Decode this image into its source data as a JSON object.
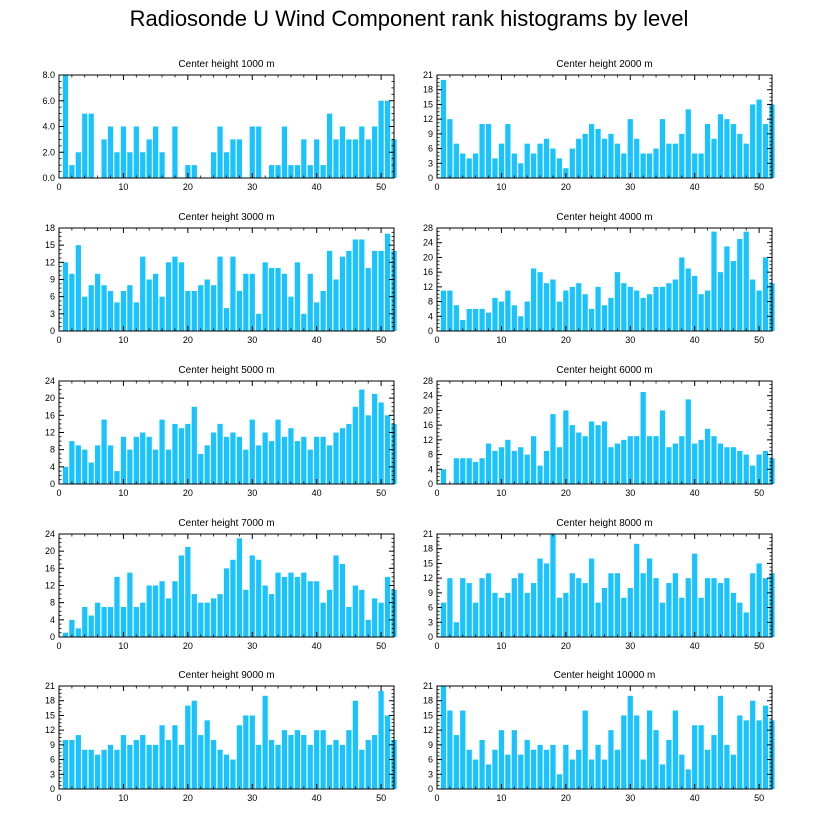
{
  "title": "Radiosonde U Wind Component rank histograms by level",
  "bar_color": "#19C3FF",
  "chart_data": [
    {
      "type": "bar",
      "title": "Center height 1000 m",
      "xticks": [
        0,
        10,
        20,
        30,
        40,
        50
      ],
      "xlim": [
        0,
        52
      ],
      "ylim": [
        0,
        8
      ],
      "yticks": [
        0,
        2,
        4,
        6,
        8
      ],
      "ytick_labels": [
        "0.0",
        "2.0",
        "4.0",
        "6.0",
        "8.0"
      ],
      "values": [
        8,
        1,
        2,
        5,
        5,
        0,
        3,
        4,
        2,
        4,
        2,
        4,
        2,
        3,
        4,
        2,
        0,
        4,
        0,
        1,
        1,
        0,
        0,
        2,
        4,
        2,
        3,
        3,
        0,
        4,
        4,
        0,
        1,
        1,
        4,
        1,
        1,
        3,
        1,
        3,
        1,
        5,
        3,
        4,
        3,
        3,
        4,
        3,
        4,
        6,
        6,
        3
      ]
    },
    {
      "type": "bar",
      "title": "Center height 2000 m",
      "xticks": [
        0,
        10,
        20,
        30,
        40,
        50
      ],
      "xlim": [
        0,
        52
      ],
      "ylim": [
        0,
        21
      ],
      "yticks": [
        0,
        3,
        6,
        9,
        12,
        15,
        18,
        21
      ],
      "ytick_labels": [
        "0",
        "3",
        "6",
        "9",
        "12",
        "15",
        "18",
        "21"
      ],
      "values": [
        20,
        12,
        7,
        5,
        4,
        5,
        11,
        11,
        4,
        7,
        11,
        5,
        3,
        7,
        5,
        7,
        8,
        6,
        4,
        2,
        6,
        8,
        9,
        11,
        10,
        8,
        9,
        7,
        5,
        12,
        8,
        5,
        5,
        6,
        12,
        7,
        7,
        9,
        14,
        5,
        5,
        11,
        8,
        13,
        12,
        11,
        9,
        7,
        15,
        16,
        11,
        15
      ]
    },
    {
      "type": "bar",
      "title": "Center height 3000 m",
      "xticks": [
        0,
        10,
        20,
        30,
        40,
        50
      ],
      "xlim": [
        0,
        52
      ],
      "ylim": [
        0,
        18
      ],
      "yticks": [
        0,
        3,
        6,
        9,
        12,
        15,
        18
      ],
      "ytick_labels": [
        "0",
        "3",
        "6",
        "9",
        "12",
        "15",
        "18"
      ],
      "values": [
        12,
        10,
        15,
        6,
        8,
        10,
        8,
        7,
        5,
        7,
        8,
        5,
        13,
        9,
        10,
        6,
        12,
        13,
        12,
        7,
        7,
        8,
        9,
        8,
        13,
        4,
        13,
        7,
        10,
        10,
        3,
        12,
        11,
        11,
        10,
        6,
        12,
        3,
        10,
        5,
        7,
        14,
        9,
        13,
        14,
        16,
        16,
        11,
        14,
        14,
        17,
        14
      ]
    },
    {
      "type": "bar",
      "title": "Center height 4000 m",
      "xticks": [
        0,
        10,
        20,
        30,
        40,
        50
      ],
      "xlim": [
        0,
        52
      ],
      "ylim": [
        0,
        28
      ],
      "yticks": [
        0,
        4,
        8,
        12,
        16,
        20,
        24,
        28
      ],
      "ytick_labels": [
        "0",
        "4",
        "8",
        "12",
        "16",
        "20",
        "24",
        "28"
      ],
      "values": [
        11,
        11,
        7,
        3,
        6,
        6,
        6,
        5,
        9,
        8,
        11,
        7,
        4,
        8,
        17,
        16,
        13,
        14,
        8,
        11,
        12,
        13,
        10,
        6,
        12,
        7,
        9,
        16,
        13,
        12,
        11,
        9,
        10,
        12,
        12,
        13,
        14,
        20,
        17,
        15,
        10,
        11,
        27,
        16,
        23,
        19,
        25,
        27,
        14,
        11,
        20,
        13
      ]
    },
    {
      "type": "bar",
      "title": "Center height 5000 m",
      "xticks": [
        0,
        10,
        20,
        30,
        40,
        50
      ],
      "xlim": [
        0,
        52
      ],
      "ylim": [
        0,
        24
      ],
      "yticks": [
        0,
        4,
        8,
        12,
        16,
        20,
        24
      ],
      "ytick_labels": [
        "0",
        "4",
        "8",
        "12",
        "16",
        "20",
        "24"
      ],
      "values": [
        4,
        10,
        9,
        8,
        5,
        9,
        15,
        9,
        3,
        11,
        8,
        11,
        12,
        11,
        8,
        15,
        8,
        14,
        13,
        14,
        18,
        7,
        9,
        12,
        14,
        11,
        12,
        11,
        8,
        15,
        9,
        12,
        10,
        15,
        11,
        13,
        10,
        11,
        8,
        11,
        11,
        9,
        12,
        13,
        14,
        18,
        22,
        16,
        21,
        19,
        16,
        14
      ]
    },
    {
      "type": "bar",
      "title": "Center height 6000 m",
      "xticks": [
        0,
        10,
        20,
        30,
        40,
        50
      ],
      "xlim": [
        0,
        52
      ],
      "ylim": [
        0,
        28
      ],
      "yticks": [
        0,
        4,
        8,
        12,
        16,
        20,
        24,
        28
      ],
      "ytick_labels": [
        "0",
        "4",
        "8",
        "12",
        "16",
        "20",
        "24",
        "28"
      ],
      "values": [
        4,
        0,
        7,
        7,
        7,
        6,
        7,
        11,
        9,
        10,
        12,
        9,
        10,
        8,
        13,
        5,
        9,
        19,
        10,
        20,
        16,
        14,
        13,
        17,
        16,
        17,
        10,
        11,
        12,
        13,
        13,
        25,
        13,
        13,
        20,
        10,
        11,
        13,
        23,
        11,
        12,
        15,
        13,
        11,
        10,
        10,
        9,
        8,
        5,
        8,
        9,
        7
      ]
    },
    {
      "type": "bar",
      "title": "Center height 7000 m",
      "xticks": [
        0,
        10,
        20,
        30,
        40,
        50
      ],
      "xlim": [
        0,
        52
      ],
      "ylim": [
        0,
        24
      ],
      "yticks": [
        0,
        4,
        8,
        12,
        16,
        20,
        24
      ],
      "ytick_labels": [
        "0",
        "4",
        "8",
        "12",
        "16",
        "20",
        "24"
      ],
      "values": [
        1,
        4,
        2,
        7,
        5,
        8,
        7,
        7,
        14,
        7,
        15,
        7,
        8,
        12,
        12,
        13,
        9,
        13,
        19,
        21,
        10,
        8,
        8,
        9,
        10,
        16,
        18,
        23,
        11,
        19,
        18,
        12,
        10,
        15,
        14,
        15,
        14,
        15,
        13,
        13,
        8,
        11,
        19,
        17,
        7,
        12,
        11,
        4,
        9,
        8,
        14,
        11
      ]
    },
    {
      "type": "bar",
      "title": "Center height 8000 m",
      "xticks": [
        0,
        10,
        20,
        30,
        40,
        50
      ],
      "xlim": [
        0,
        52
      ],
      "ylim": [
        0,
        21
      ],
      "yticks": [
        0,
        3,
        6,
        9,
        12,
        15,
        18,
        21
      ],
      "ytick_labels": [
        "0",
        "3",
        "6",
        "9",
        "12",
        "15",
        "18",
        "21"
      ],
      "values": [
        7,
        12,
        3,
        12,
        11,
        7,
        12,
        13,
        9,
        8,
        9,
        12,
        13,
        9,
        11,
        16,
        15,
        21,
        8,
        9,
        13,
        12,
        11,
        16,
        7,
        10,
        13,
        13,
        8,
        10,
        19,
        13,
        16,
        12,
        7,
        11,
        13,
        8,
        12,
        17,
        8,
        12,
        12,
        11,
        12,
        9,
        7,
        5,
        13,
        15,
        12,
        13
      ]
    },
    {
      "type": "bar",
      "title": "Center height 9000 m",
      "xticks": [
        0,
        10,
        20,
        30,
        40,
        50
      ],
      "xlim": [
        0,
        52
      ],
      "ylim": [
        0,
        21
      ],
      "yticks": [
        0,
        3,
        6,
        9,
        12,
        15,
        18,
        21
      ],
      "ytick_labels": [
        "0",
        "3",
        "6",
        "9",
        "12",
        "15",
        "18",
        "21"
      ],
      "values": [
        10,
        10,
        11,
        8,
        8,
        7,
        8,
        9,
        8,
        11,
        9,
        10,
        11,
        9,
        9,
        13,
        10,
        13,
        9,
        17,
        18,
        11,
        14,
        10,
        8,
        7,
        6,
        13,
        15,
        15,
        9,
        19,
        10,
        9,
        12,
        11,
        12,
        11,
        9,
        12,
        12,
        9,
        10,
        9,
        12,
        18,
        8,
        10,
        11,
        20,
        15,
        10
      ]
    },
    {
      "type": "bar",
      "title": "Center height 10000 m",
      "xticks": [
        0,
        10,
        20,
        30,
        40,
        50
      ],
      "xlim": [
        0,
        52
      ],
      "ylim": [
        0,
        21
      ],
      "yticks": [
        0,
        3,
        6,
        9,
        12,
        15,
        18,
        21
      ],
      "ytick_labels": [
        "0",
        "3",
        "6",
        "9",
        "12",
        "15",
        "18",
        "21"
      ],
      "values": [
        21,
        16,
        11,
        16,
        8,
        6,
        10,
        5,
        8,
        12,
        7,
        12,
        7,
        10,
        8,
        9,
        8,
        9,
        3,
        9,
        6,
        8,
        16,
        6,
        9,
        6,
        12,
        8,
        15,
        19,
        15,
        6,
        16,
        12,
        5,
        10,
        16,
        7,
        4,
        13,
        13,
        8,
        11,
        19,
        9,
        7,
        15,
        14,
        18,
        14,
        17,
        14
      ]
    }
  ]
}
